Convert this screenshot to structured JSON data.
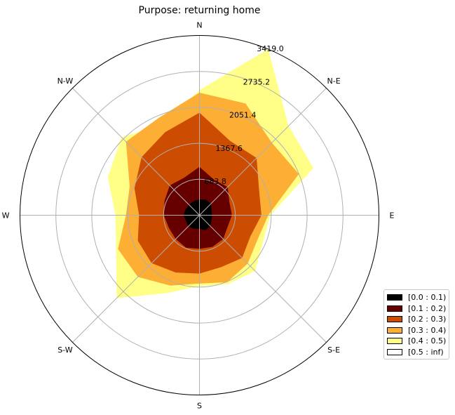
{
  "chart_data": {
    "type": "windrose",
    "title": "Purpose: returning home",
    "directions": [
      "N",
      "N-E",
      "E",
      "S-E",
      "S",
      "S-W",
      "W",
      "N-W"
    ],
    "radial_ticks": [
      683.8,
      1367.6,
      2051.4,
      2735.2,
      3419.0
    ],
    "rmax": 3419.0,
    "grid": true,
    "legend_position": "lower-right",
    "bin_directions_deg": [
      0,
      22.5,
      45,
      67.5,
      90,
      112.5,
      135,
      157.5,
      180,
      202.5,
      225,
      247.5,
      270,
      292.5,
      315,
      337.5
    ],
    "series": [
      {
        "name": "[0.0 : 0.1)",
        "color": "#000000",
        "cumulative": [
          300,
          320,
          310,
          250,
          240,
          250,
          290,
          310,
          260,
          280,
          300,
          280,
          300,
          290,
          280,
          290
        ]
      },
      {
        "name": "[0.1 : 0.2)",
        "color": "#660000",
        "cumulative": [
          920,
          730,
          760,
          620,
          620,
          580,
          640,
          650,
          640,
          670,
          640,
          630,
          680,
          720,
          800,
          770
        ]
      },
      {
        "name": "[0.2 : 0.3)",
        "color": "#cc4c02",
        "cumulative": [
          1950,
          1530,
          1540,
          1230,
          1180,
          1050,
          1150,
          1070,
          1110,
          1180,
          1290,
          1270,
          1150,
          1340,
          1560,
          1710
        ]
      },
      {
        "name": "[0.3 : 0.4)",
        "color": "#fdae35",
        "cumulative": [
          2330,
          2300,
          1950,
          2050,
          1310,
          1200,
          1300,
          1380,
          1300,
          1450,
          1660,
          1680,
          1400,
          1440,
          1980,
          2010
        ]
      },
      {
        "name": "[0.4 : 0.5)",
        "color": "#ffff88",
        "cumulative": [
          2380,
          3419,
          2400,
          2350,
          1350,
          1310,
          1500,
          1420,
          1350,
          1600,
          2230,
          1720,
          1600,
          1890,
          2100,
          1850
        ]
      },
      {
        "name": "[0.5 : inf)",
        "color": "#ffffff",
        "cumulative": [
          2380,
          3419,
          2400,
          2350,
          1350,
          1310,
          1500,
          1420,
          1350,
          1600,
          2230,
          1720,
          1600,
          1890,
          2100,
          1850
        ]
      }
    ]
  }
}
